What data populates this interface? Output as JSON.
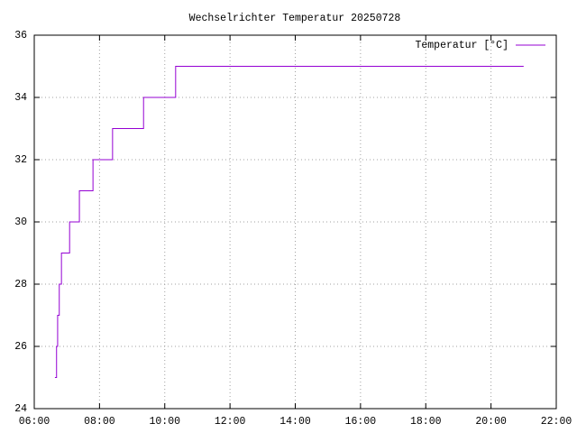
{
  "chart_data": {
    "type": "line",
    "steps": true,
    "title": "Wechselrichter Temperatur 20250728",
    "series": [
      {
        "name": "Temperatur [°C]",
        "color": "#9400d3",
        "x": [
          398,
          401,
          403,
          406,
          410,
          425,
          443,
          468,
          504,
          561,
          620,
          1260
        ],
        "values": [
          25,
          26,
          27,
          28,
          29,
          30,
          31,
          32,
          33,
          34,
          35,
          35
        ]
      }
    ],
    "xlim": [
      360,
      1320
    ],
    "xticks": [
      {
        "value": 360,
        "label": "06:00"
      },
      {
        "value": 480,
        "label": "08:00"
      },
      {
        "value": 600,
        "label": "10:00"
      },
      {
        "value": 720,
        "label": "12:00"
      },
      {
        "value": 840,
        "label": "14:00"
      },
      {
        "value": 960,
        "label": "16:00"
      },
      {
        "value": 1080,
        "label": "18:00"
      },
      {
        "value": 1200,
        "label": "20:00"
      },
      {
        "value": 1320,
        "label": "22:00"
      }
    ],
    "ylim": [
      24,
      36
    ],
    "yticks": [
      24,
      26,
      28,
      30,
      32,
      34,
      36
    ],
    "grid": true,
    "legend": "top-right"
  }
}
